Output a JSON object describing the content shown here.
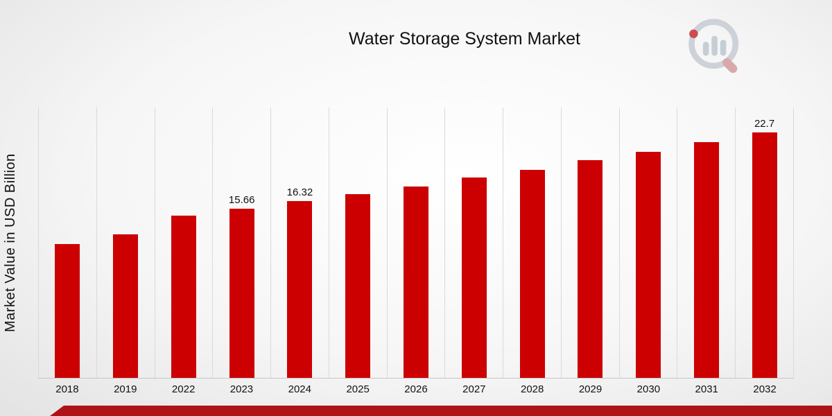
{
  "chart_data": {
    "type": "bar",
    "title": "Water Storage System Market",
    "ylabel": "Market Value in USD Billion",
    "xlabel": "",
    "categories": [
      "2018",
      "2019",
      "2022",
      "2023",
      "2024",
      "2025",
      "2026",
      "2027",
      "2028",
      "2029",
      "2030",
      "2031",
      "2032"
    ],
    "values": [
      12.4,
      13.3,
      15.0,
      15.66,
      16.32,
      17.0,
      17.7,
      18.5,
      19.2,
      20.1,
      20.9,
      21.8,
      22.7
    ],
    "data_labels": {
      "2023": "15.66",
      "2024": "16.32",
      "2032": "22.7"
    },
    "ylim": [
      0,
      25
    ],
    "bar_color": "#cc0001",
    "grid": "vertical",
    "legend": "none"
  },
  "branding": {
    "logo_icon": "magnifier-bar-chart-logo",
    "ring_color": "#c9ced6",
    "bar_gray": "#c2c9d1",
    "accent_red": "#c9393d",
    "footer_stripe_color": "#ae1318"
  }
}
